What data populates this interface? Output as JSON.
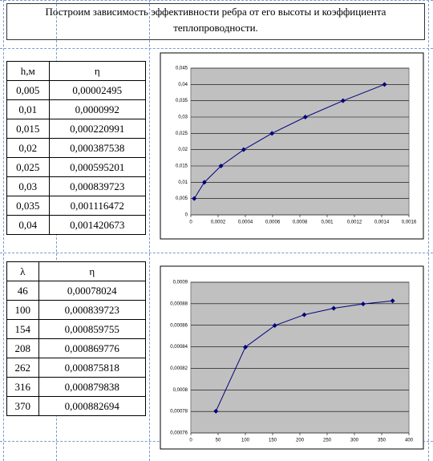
{
  "title": "Построим зависимость эффективности ребра от его высоты и коэффициента теплопроводности.",
  "table1": {
    "header": [
      "h,м",
      "η"
    ],
    "rows": [
      [
        "0,005",
        "0,00002495"
      ],
      [
        "0,01",
        "0,0000992"
      ],
      [
        "0,015",
        "0,000220991"
      ],
      [
        "0,02",
        "0,000387538"
      ],
      [
        "0,025",
        "0,000595201"
      ],
      [
        "0,03",
        "0,000839723"
      ],
      [
        "0,035",
        "0,001116472"
      ],
      [
        "0,04",
        "0,001420673"
      ]
    ]
  },
  "chart1": {
    "type": "line",
    "color": "#00007f",
    "x": [
      2.495e-05,
      9.92e-05,
      0.000220991,
      0.000387538,
      0.000595201,
      0.000839723,
      0.001116472,
      0.001420673
    ],
    "values": [
      0.005,
      0.01,
      0.015,
      0.02,
      0.025,
      0.03,
      0.035,
      0.04
    ],
    "xlim": [
      0,
      0.0016
    ],
    "ylim": [
      0,
      0.045
    ],
    "xticks": [
      0,
      {
        "value": 0.0002,
        "label": "0,0002"
      },
      {
        "value": 0.0004,
        "label": "0,0004"
      },
      {
        "value": 0.0006,
        "label": "0,0006"
      },
      {
        "value": 0.0008,
        "label": "0,0008"
      },
      {
        "value": 0.001,
        "label": "0,001"
      },
      {
        "value": 0.0012,
        "label": "0,0012"
      },
      {
        "value": 0.0014,
        "label": "0,0014"
      },
      {
        "value": 0.0016,
        "label": "0,0016"
      }
    ],
    "yticks": [
      0,
      {
        "value": 0.005,
        "label": "0,005"
      },
      {
        "value": 0.01,
        "label": "0,01"
      },
      {
        "value": 0.015,
        "label": "0,015"
      },
      {
        "value": 0.02,
        "label": "0,02"
      },
      {
        "value": 0.025,
        "label": "0,025"
      },
      {
        "value": 0.03,
        "label": "0,03"
      },
      {
        "value": 0.035,
        "label": "0,035"
      },
      {
        "value": 0.04,
        "label": "0,04"
      },
      {
        "value": 0.045,
        "label": "0,045"
      }
    ],
    "grid": true
  },
  "table2": {
    "header": [
      "λ",
      "η"
    ],
    "rows": [
      [
        "46",
        "0,00078024"
      ],
      [
        "100",
        "0,000839723"
      ],
      [
        "154",
        "0,000859755"
      ],
      [
        "208",
        "0,000869776"
      ],
      [
        "262",
        "0,000875818"
      ],
      [
        "316",
        "0,000879838"
      ],
      [
        "370",
        "0,000882694"
      ]
    ]
  },
  "chart2": {
    "type": "line",
    "color": "#00007f",
    "x": [
      46,
      100,
      154,
      208,
      262,
      316,
      370
    ],
    "values": [
      0.00078024,
      0.000839723,
      0.000859755,
      0.000869776,
      0.000875818,
      0.000879838,
      0.000882694
    ],
    "xlim": [
      0,
      400
    ],
    "ylim": [
      0.00076,
      0.0009
    ],
    "xticks": [
      0,
      50,
      100,
      150,
      200,
      250,
      300,
      350,
      400
    ],
    "yticks": [
      {
        "value": 0.00076,
        "label": "0,00076"
      },
      {
        "value": 0.00078,
        "label": "0,00078"
      },
      {
        "value": 0.0008,
        "label": "0,0008"
      },
      {
        "value": 0.00082,
        "label": "0,00082"
      },
      {
        "value": 0.00084,
        "label": "0,00084"
      },
      {
        "value": 0.00086,
        "label": "0,00086"
      },
      {
        "value": 0.00088,
        "label": "0,00088"
      },
      {
        "value": 0.0009,
        "label": "0,0009"
      }
    ],
    "grid": true
  }
}
